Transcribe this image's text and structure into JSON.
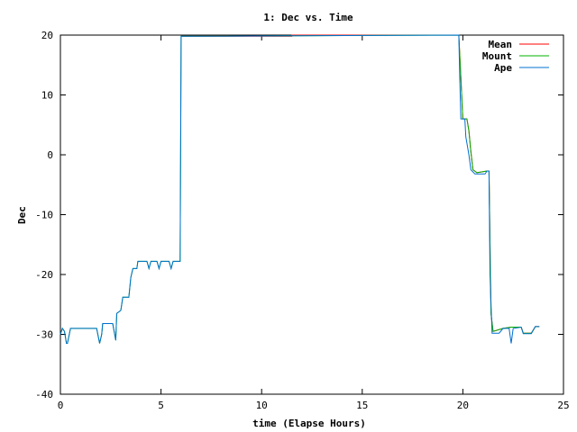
{
  "chart_data": {
    "type": "line",
    "title": "1: Dec vs. Time",
    "xlabel": "time (Elapse Hours)",
    "ylabel": "Dec",
    "xlim": [
      0,
      25
    ],
    "ylim": [
      -40,
      20
    ],
    "xticks": [
      0,
      5,
      10,
      15,
      20,
      25
    ],
    "yticks": [
      -40,
      -30,
      -20,
      -10,
      0,
      10,
      20
    ],
    "grid": false,
    "legend_position": "top-right",
    "series": [
      {
        "name": "Mean",
        "color": "#ff0000",
        "points": [
          [
            6.0,
            19.8
          ],
          [
            11.5,
            19.8
          ],
          [
            11.5,
            20.0
          ],
          [
            19.8,
            20.0
          ],
          [
            20.0,
            6.0
          ],
          [
            20.2,
            6.0
          ],
          [
            20.3,
            4.0
          ],
          [
            20.4,
            0.5
          ],
          [
            20.5,
            -2.5
          ],
          [
            20.7,
            -3.0
          ],
          [
            21.2,
            -2.7
          ],
          [
            21.3,
            -2.7
          ],
          [
            21.4,
            -26.5
          ],
          [
            21.5,
            -29.5
          ],
          [
            22.0,
            -29.0
          ],
          [
            22.4,
            -28.8
          ],
          [
            22.9,
            -28.8
          ],
          [
            23.0,
            -29.8
          ],
          [
            23.4,
            -29.8
          ],
          [
            23.6,
            -28.7
          ],
          [
            23.8,
            -28.7
          ]
        ]
      },
      {
        "name": "Mount",
        "color": "#00b000",
        "points": [
          [
            0.0,
            -30.0
          ],
          [
            0.1,
            -29.0
          ],
          [
            0.2,
            -29.5
          ],
          [
            0.3,
            -31.5
          ],
          [
            0.35,
            -31.5
          ],
          [
            0.5,
            -29.0
          ],
          [
            1.8,
            -29.0
          ],
          [
            1.95,
            -31.5
          ],
          [
            2.05,
            -30.0
          ],
          [
            2.1,
            -28.2
          ],
          [
            2.6,
            -28.2
          ],
          [
            2.75,
            -31.0
          ],
          [
            2.8,
            -26.5
          ],
          [
            3.0,
            -26.0
          ],
          [
            3.1,
            -23.8
          ],
          [
            3.4,
            -23.8
          ],
          [
            3.5,
            -20.5
          ],
          [
            3.6,
            -19.0
          ],
          [
            3.8,
            -19.0
          ],
          [
            3.85,
            -17.8
          ],
          [
            4.3,
            -17.8
          ],
          [
            4.4,
            -19.0
          ],
          [
            4.5,
            -17.8
          ],
          [
            4.8,
            -17.8
          ],
          [
            4.9,
            -19.0
          ],
          [
            5.0,
            -17.8
          ],
          [
            5.4,
            -17.8
          ],
          [
            5.5,
            -19.0
          ],
          [
            5.6,
            -17.8
          ],
          [
            5.95,
            -17.8
          ],
          [
            6.0,
            19.8
          ],
          [
            19.8,
            20.0
          ],
          [
            20.0,
            6.0
          ],
          [
            20.2,
            6.0
          ],
          [
            20.3,
            4.0
          ],
          [
            20.4,
            0.5
          ],
          [
            20.5,
            -2.5
          ],
          [
            20.7,
            -3.0
          ],
          [
            21.2,
            -2.7
          ],
          [
            21.3,
            -2.7
          ],
          [
            21.4,
            -26.5
          ],
          [
            21.5,
            -29.5
          ],
          [
            22.0,
            -29.0
          ],
          [
            22.4,
            -28.8
          ],
          [
            22.9,
            -28.8
          ],
          [
            23.0,
            -29.8
          ],
          [
            23.4,
            -29.8
          ],
          [
            23.6,
            -28.7
          ],
          [
            23.8,
            -28.7
          ]
        ]
      },
      {
        "name": "Ape",
        "color": "#0070d0",
        "points": [
          [
            0.0,
            -30.0
          ],
          [
            0.1,
            -29.0
          ],
          [
            0.2,
            -29.5
          ],
          [
            0.3,
            -31.5
          ],
          [
            0.35,
            -31.5
          ],
          [
            0.5,
            -29.0
          ],
          [
            1.8,
            -29.0
          ],
          [
            1.95,
            -31.5
          ],
          [
            2.05,
            -30.0
          ],
          [
            2.1,
            -28.2
          ],
          [
            2.6,
            -28.2
          ],
          [
            2.75,
            -31.0
          ],
          [
            2.8,
            -26.5
          ],
          [
            3.0,
            -26.0
          ],
          [
            3.1,
            -23.8
          ],
          [
            3.4,
            -23.8
          ],
          [
            3.5,
            -20.5
          ],
          [
            3.6,
            -19.0
          ],
          [
            3.8,
            -19.0
          ],
          [
            3.85,
            -17.8
          ],
          [
            4.3,
            -17.8
          ],
          [
            4.4,
            -19.0
          ],
          [
            4.5,
            -17.8
          ],
          [
            4.8,
            -17.8
          ],
          [
            4.9,
            -19.0
          ],
          [
            5.0,
            -17.8
          ],
          [
            5.4,
            -17.8
          ],
          [
            5.5,
            -19.0
          ],
          [
            5.6,
            -17.8
          ],
          [
            5.95,
            -17.8
          ],
          [
            6.0,
            19.8
          ],
          [
            19.8,
            20.0
          ],
          [
            19.85,
            12.0
          ],
          [
            19.9,
            6.0
          ],
          [
            20.1,
            6.0
          ],
          [
            20.15,
            3.0
          ],
          [
            20.3,
            0.0
          ],
          [
            20.4,
            -2.5
          ],
          [
            20.6,
            -3.2
          ],
          [
            21.1,
            -3.2
          ],
          [
            21.2,
            -2.7
          ],
          [
            21.3,
            -2.7
          ],
          [
            21.35,
            -20.0
          ],
          [
            21.45,
            -29.8
          ],
          [
            21.8,
            -29.8
          ],
          [
            22.0,
            -29.0
          ],
          [
            22.3,
            -29.0
          ],
          [
            22.4,
            -31.5
          ],
          [
            22.5,
            -29.0
          ],
          [
            22.9,
            -28.8
          ],
          [
            23.0,
            -29.9
          ],
          [
            23.4,
            -29.9
          ],
          [
            23.6,
            -28.7
          ],
          [
            23.8,
            -28.7
          ]
        ]
      }
    ]
  }
}
